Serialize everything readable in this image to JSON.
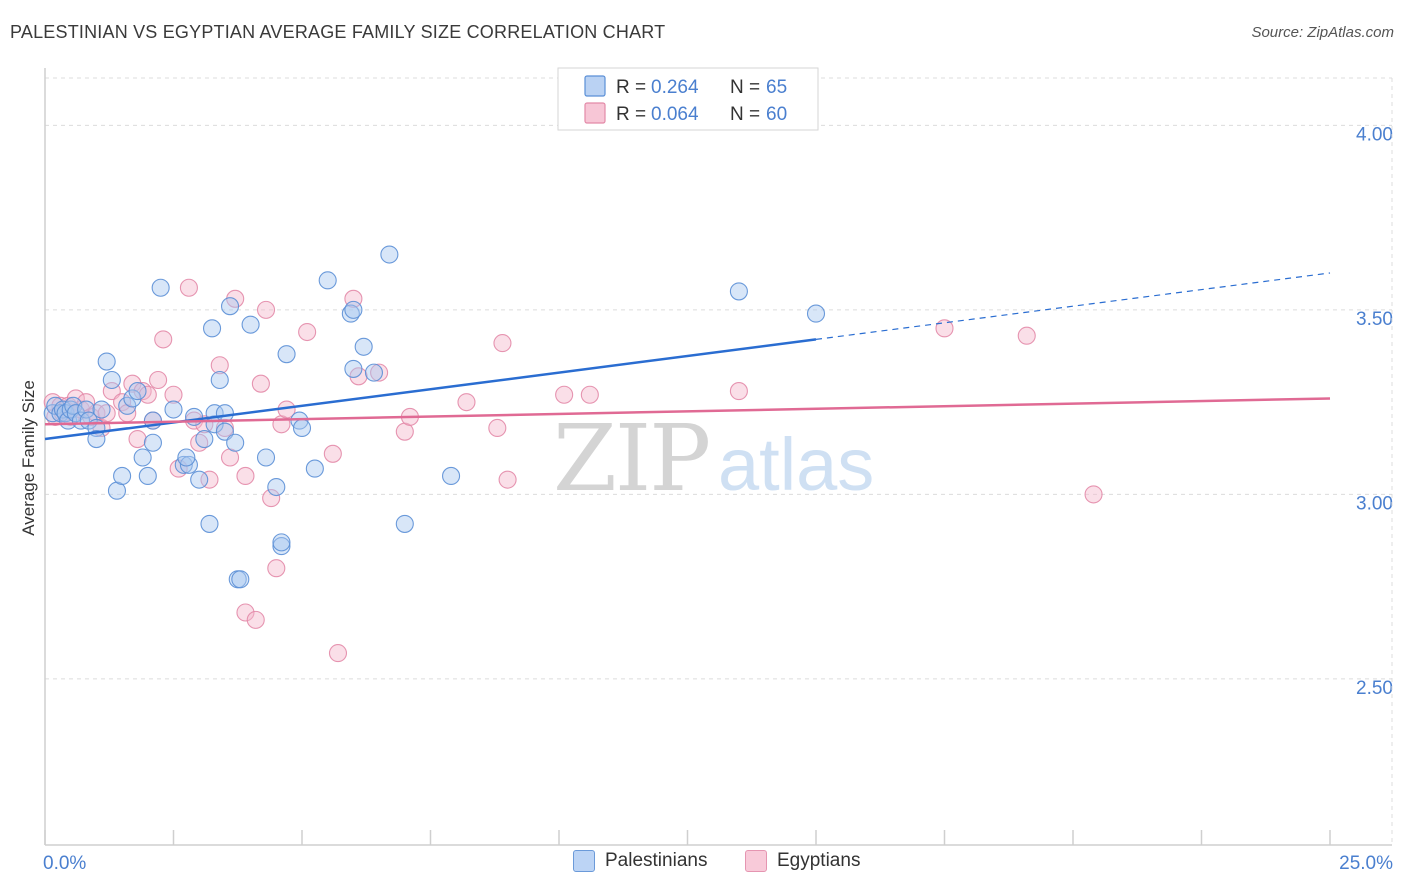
{
  "title": "PALESTINIAN VS EGYPTIAN AVERAGE FAMILY SIZE CORRELATION CHART",
  "source": "Source: ZipAtlas.com",
  "watermark": {
    "zip": "ZIP",
    "atlas": "atlas"
  },
  "colors": {
    "blue_fill": "#a9c7f0",
    "blue_stroke": "#5b8fd6",
    "blue_line": "#2a6dd1",
    "pink_fill": "#f5b8cc",
    "pink_stroke": "#e38aa8",
    "pink_line": "#e06a94",
    "axis_text": "#4a7fcf",
    "grid": "#dcdcdc"
  },
  "chart_data": {
    "type": "scatter",
    "title": "PALESTINIAN VS EGYPTIAN AVERAGE FAMILY SIZE CORRELATION CHART",
    "xlabel": "",
    "ylabel": "Average Family Size",
    "xlim": [
      0,
      25
    ],
    "ylim": [
      2.05,
      4.15
    ],
    "x_tick_labels": [
      "0.0%",
      "25.0%"
    ],
    "y_ticks": [
      2.5,
      3.0,
      3.5,
      4.0
    ],
    "y_tick_labels": [
      "2.50",
      "3.00",
      "3.50",
      "4.00"
    ],
    "grid": true,
    "legend": {
      "placement": "top-center",
      "entries": [
        {
          "r_label": "R =",
          "r_value": "0.264",
          "n_label": "N =",
          "n_value": "65"
        },
        {
          "r_label": "R =",
          "r_value": "0.064",
          "n_label": "N =",
          "n_value": "60"
        }
      ]
    },
    "series": [
      {
        "name": "Palestinians",
        "color": "blue",
        "trend": {
          "x": [
            0,
            15,
            25
          ],
          "y": [
            3.15,
            3.42,
            3.6
          ],
          "dashed_from": 15
        },
        "points": [
          [
            0.15,
            3.22
          ],
          [
            0.2,
            3.24
          ],
          [
            0.3,
            3.22
          ],
          [
            0.35,
            3.23
          ],
          [
            0.4,
            3.22
          ],
          [
            0.45,
            3.2
          ],
          [
            0.5,
            3.23
          ],
          [
            0.55,
            3.24
          ],
          [
            0.6,
            3.22
          ],
          [
            0.7,
            3.2
          ],
          [
            0.8,
            3.23
          ],
          [
            0.85,
            3.2
          ],
          [
            1.0,
            3.18
          ],
          [
            1.0,
            3.15
          ],
          [
            1.1,
            3.23
          ],
          [
            1.2,
            3.36
          ],
          [
            1.3,
            3.31
          ],
          [
            1.4,
            3.01
          ],
          [
            1.5,
            3.05
          ],
          [
            1.6,
            3.24
          ],
          [
            1.7,
            3.26
          ],
          [
            1.8,
            3.28
          ],
          [
            1.9,
            3.1
          ],
          [
            2.0,
            3.05
          ],
          [
            2.1,
            3.14
          ],
          [
            2.1,
            3.2
          ],
          [
            2.25,
            3.56
          ],
          [
            2.5,
            3.23
          ],
          [
            2.7,
            3.08
          ],
          [
            2.8,
            3.08
          ],
          [
            2.9,
            3.21
          ],
          [
            3.0,
            3.04
          ],
          [
            3.1,
            3.15
          ],
          [
            3.2,
            2.92
          ],
          [
            3.25,
            3.45
          ],
          [
            3.3,
            3.19
          ],
          [
            3.3,
            3.22
          ],
          [
            3.4,
            3.31
          ],
          [
            3.5,
            3.22
          ],
          [
            3.5,
            3.17
          ],
          [
            3.6,
            3.51
          ],
          [
            3.7,
            3.14
          ],
          [
            3.75,
            2.77
          ],
          [
            3.8,
            2.77
          ],
          [
            4.0,
            3.46
          ],
          [
            4.3,
            3.1
          ],
          [
            4.5,
            3.02
          ],
          [
            4.6,
            2.86
          ],
          [
            4.6,
            2.87
          ],
          [
            4.7,
            3.38
          ],
          [
            4.95,
            3.2
          ],
          [
            5.0,
            3.18
          ],
          [
            5.25,
            3.07
          ],
          [
            5.5,
            3.58
          ],
          [
            5.95,
            3.49
          ],
          [
            6.0,
            3.5
          ],
          [
            6.0,
            3.34
          ],
          [
            6.2,
            3.4
          ],
          [
            6.4,
            3.33
          ],
          [
            6.7,
            3.65
          ],
          [
            7.0,
            2.92
          ],
          [
            7.9,
            3.05
          ],
          [
            13.5,
            3.55
          ],
          [
            15.0,
            3.49
          ],
          [
            2.75,
            3.1
          ]
        ]
      },
      {
        "name": "Egyptians",
        "color": "pink",
        "trend": {
          "x": [
            0,
            25
          ],
          "y": [
            3.19,
            3.26
          ]
        },
        "points": [
          [
            0.15,
            3.25
          ],
          [
            0.2,
            3.21
          ],
          [
            0.3,
            3.24
          ],
          [
            0.35,
            3.22
          ],
          [
            0.4,
            3.23
          ],
          [
            0.45,
            3.24
          ],
          [
            0.5,
            3.21
          ],
          [
            0.6,
            3.26
          ],
          [
            0.7,
            3.23
          ],
          [
            0.8,
            3.25
          ],
          [
            0.9,
            3.21
          ],
          [
            1.0,
            3.22
          ],
          [
            1.1,
            3.18
          ],
          [
            1.2,
            3.22
          ],
          [
            1.3,
            3.28
          ],
          [
            1.5,
            3.25
          ],
          [
            1.6,
            3.22
          ],
          [
            1.7,
            3.3
          ],
          [
            1.8,
            3.15
          ],
          [
            1.9,
            3.28
          ],
          [
            2.0,
            3.27
          ],
          [
            2.1,
            3.2
          ],
          [
            2.2,
            3.31
          ],
          [
            2.3,
            3.42
          ],
          [
            2.5,
            3.27
          ],
          [
            2.6,
            3.07
          ],
          [
            2.8,
            3.56
          ],
          [
            2.9,
            3.2
          ],
          [
            3.0,
            3.14
          ],
          [
            3.1,
            3.19
          ],
          [
            3.2,
            3.04
          ],
          [
            3.4,
            3.35
          ],
          [
            3.5,
            3.18
          ],
          [
            3.6,
            3.1
          ],
          [
            3.7,
            3.53
          ],
          [
            3.9,
            2.68
          ],
          [
            3.9,
            3.05
          ],
          [
            4.1,
            2.66
          ],
          [
            4.2,
            3.3
          ],
          [
            4.3,
            3.5
          ],
          [
            4.4,
            2.99
          ],
          [
            4.5,
            2.8
          ],
          [
            4.6,
            3.19
          ],
          [
            4.7,
            3.23
          ],
          [
            5.1,
            3.44
          ],
          [
            5.6,
            3.11
          ],
          [
            5.7,
            2.57
          ],
          [
            6.0,
            3.53
          ],
          [
            6.1,
            3.32
          ],
          [
            6.5,
            3.33
          ],
          [
            7.0,
            3.17
          ],
          [
            7.1,
            3.21
          ],
          [
            8.2,
            3.25
          ],
          [
            8.8,
            3.18
          ],
          [
            8.9,
            3.41
          ],
          [
            9.0,
            3.04
          ],
          [
            10.1,
            3.27
          ],
          [
            10.6,
            3.27
          ],
          [
            13.5,
            3.28
          ],
          [
            17.5,
            3.45
          ]
        ]
      }
    ],
    "extra_points_egyptians": [
      [
        19.1,
        3.43
      ],
      [
        20.4,
        3.0
      ]
    ]
  },
  "bottom_legend": {
    "blue_label": "Palestinians",
    "pink_label": "Egyptians"
  }
}
